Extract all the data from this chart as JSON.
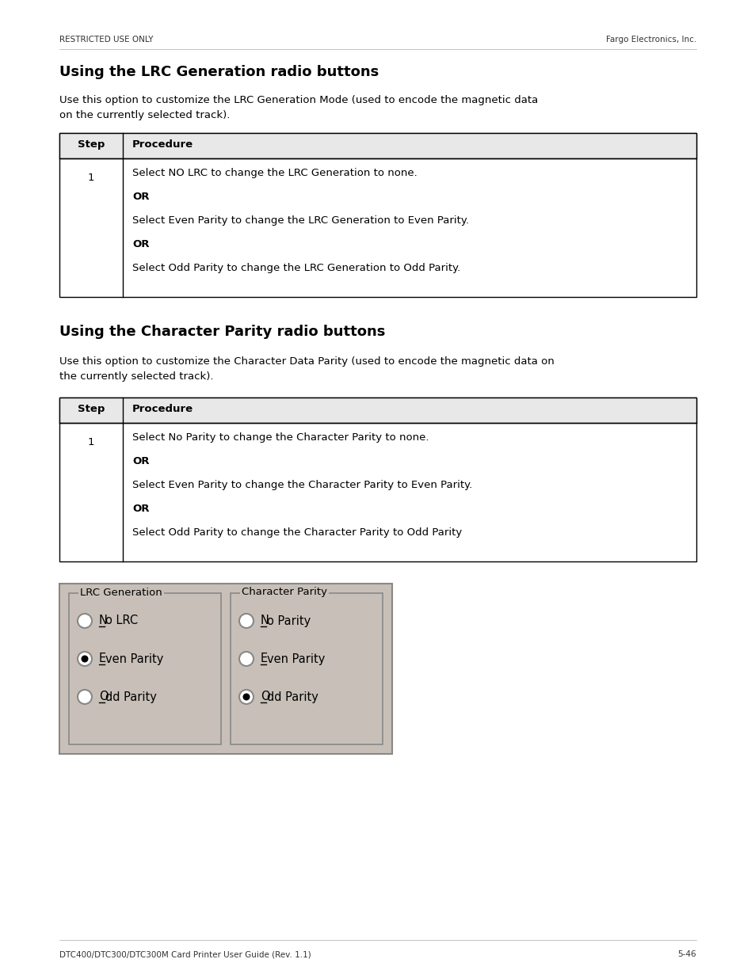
{
  "header_left": "RESTRICTED USE ONLY",
  "header_right": "Fargo Electronics, Inc.",
  "footer_left": "DTC400/DTC300/DTC300M Card Printer User Guide (Rev. 1.1)",
  "footer_right": "5-46",
  "title1": "Using the LRC Generation radio buttons",
  "body1": "Use this option to customize the LRC Generation Mode (used to encode the magnetic data\non the currently selected track).",
  "table1_header": [
    "Step",
    "Procedure"
  ],
  "table1_row1_step": "1",
  "table1_row1_lines": [
    [
      "normal",
      "Select NO LRC to change the LRC Generation to none."
    ],
    [
      "bold",
      "OR"
    ],
    [
      "normal",
      "Select Even Parity to change the LRC Generation to Even Parity."
    ],
    [
      "bold",
      "OR"
    ],
    [
      "normal",
      "Select Odd Parity to change the LRC Generation to Odd Parity."
    ]
  ],
  "title2": "Using the Character Parity radio buttons",
  "body2": "Use this option to customize the Character Data Parity (used to encode the magnetic data on\nthe currently selected track).",
  "table2_header": [
    "Step",
    "Procedure"
  ],
  "table2_row1_step": "1",
  "table2_row1_lines": [
    [
      "normal",
      "Select No Parity to change the Character Parity to none."
    ],
    [
      "bold",
      "OR"
    ],
    [
      "normal",
      "Select Even Parity to change the Character Parity to Even Parity."
    ],
    [
      "bold",
      "OR"
    ],
    [
      "normal",
      "Select Odd Parity to change the Character Parity to Odd Parity"
    ]
  ],
  "image_bg": "#c8c0b8",
  "lrc_group_title": "LRC Generation",
  "lrc_options": [
    "No LRC",
    "Even Parity",
    "Odd Parity"
  ],
  "lrc_selected": 1,
  "char_group_title": "Character Parity",
  "char_options": [
    "No Parity",
    "Even Parity",
    "Odd Parity"
  ],
  "char_selected": 2,
  "page_bg": "#ffffff",
  "text_color": "#000000",
  "header_fontsize": 7.5,
  "title_fontsize": 13,
  "body_fontsize": 9.5,
  "table_header_fontsize": 9.5,
  "table_body_fontsize": 9.5
}
